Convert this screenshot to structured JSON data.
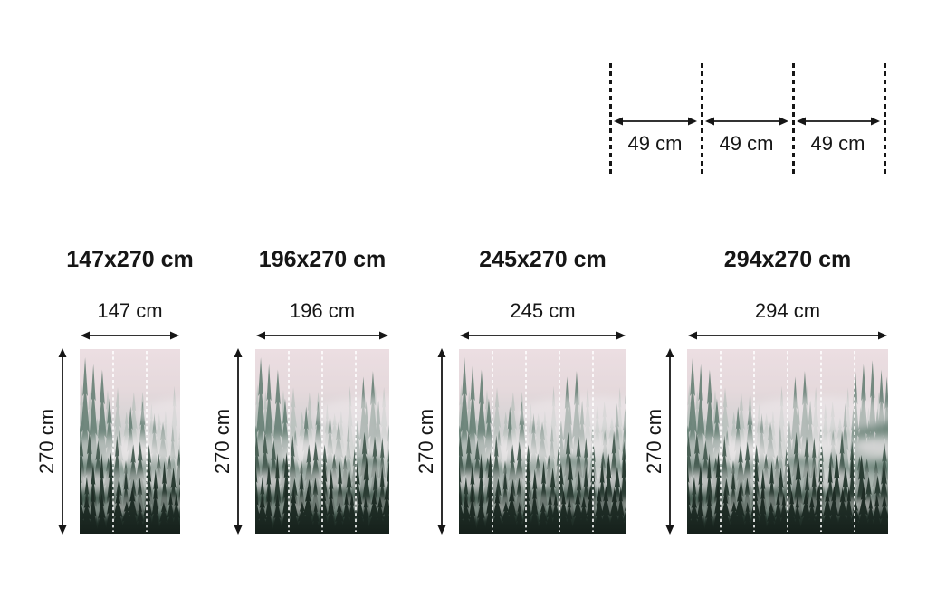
{
  "roll_diagram": {
    "segments": [
      {
        "label": "49 cm"
      },
      {
        "label": "49 cm"
      },
      {
        "label": "49 cm"
      }
    ]
  },
  "products": [
    {
      "title": "147x270 cm",
      "width_label": "147 cm",
      "height_label": "270 cm",
      "width_cm": 147,
      "height_cm": 270,
      "panels": 3
    },
    {
      "title": "196x270 cm",
      "width_label": "196 cm",
      "height_label": "270 cm",
      "width_cm": 196,
      "height_cm": 270,
      "panels": 4
    },
    {
      "title": "245x270 cm",
      "width_label": "245 cm",
      "height_label": "270 cm",
      "width_cm": 245,
      "height_cm": 270,
      "panels": 5
    },
    {
      "title": "294x270 cm",
      "width_label": "294 cm",
      "height_label": "270 cm",
      "width_cm": 294,
      "height_cm": 270,
      "panels": 6
    }
  ],
  "image": {
    "subject": "misty-pine-forest-mural",
    "panel_width_cm": 49
  },
  "colors": {
    "text": "#161616",
    "dimension_lines": "#161616",
    "seam_lines": "#ffffff",
    "sky_top": "#ecdee2",
    "forest_dark": "#1e2c25"
  }
}
